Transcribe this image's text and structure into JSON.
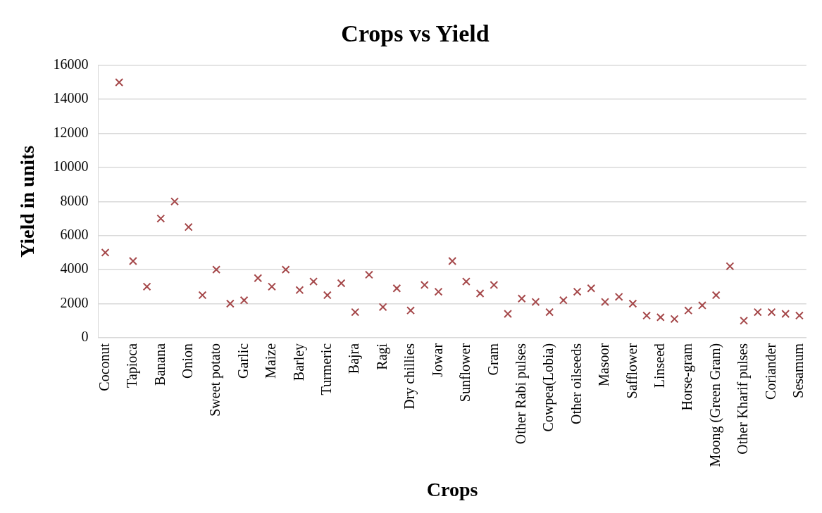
{
  "chart_data": {
    "type": "scatter",
    "title": "Crops vs Yield",
    "xlabel": "Crops",
    "ylabel": "Yield in units",
    "categories": [
      "Coconut",
      null,
      "Tapioca",
      null,
      "Banana",
      null,
      "Onion",
      null,
      "Sweet potato",
      null,
      "Garlic",
      null,
      "Maize",
      null,
      "Barley",
      null,
      "Turmeric",
      null,
      "Bajra",
      null,
      "Ragi",
      null,
      "Dry chillies",
      null,
      "Jowar",
      null,
      "Sunflower",
      null,
      "Gram",
      null,
      "Other Rabi pulses",
      null,
      "Cowpea(Lobia)",
      null,
      "Other oilseeds",
      null,
      "Masoor",
      null,
      "Safflower",
      null,
      "Linseed",
      null,
      "Horse-gram",
      null,
      "Moong (Green Gram)",
      null,
      "Other Kharif pulses",
      null,
      "Coriander",
      null,
      "Sesamum"
    ],
    "series": [
      {
        "color": "#a5484a",
        "values": [
          5000,
          15000,
          4500,
          3000,
          7000,
          8000,
          6500,
          2500,
          4000,
          2000,
          2200,
          3500,
          3000,
          4000,
          2800,
          3300,
          2500,
          3200,
          1500,
          3700,
          1800,
          2900,
          1600,
          3100,
          2700,
          4500,
          3300,
          2600,
          3100,
          1400,
          2300,
          2100,
          1500,
          2200,
          2700,
          2900,
          2100,
          2400,
          2000,
          1300,
          1200,
          1100,
          1600,
          1900,
          2500,
          4200,
          1000,
          1500,
          1500,
          1400,
          1300
        ]
      }
    ],
    "ylim": [
      0,
      16000
    ],
    "yticks": [
      0,
      2000,
      4000,
      6000,
      8000,
      10000,
      12000,
      14000,
      16000
    ],
    "grid": "y",
    "marker": "cross",
    "legend": false
  }
}
